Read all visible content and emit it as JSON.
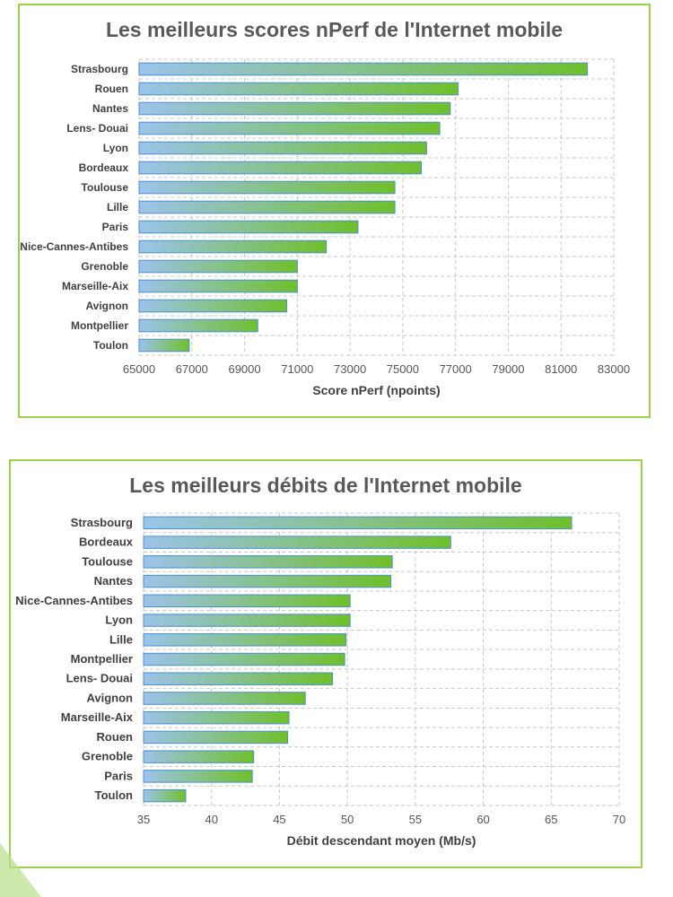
{
  "chart_data": [
    {
      "type": "bar",
      "orientation": "horizontal",
      "title": "Les meilleurs scores nPerf de l'Internet mobile",
      "xlabel": "Score nPerf (npoints)",
      "ylabel": "",
      "categories": [
        "Strasbourg",
        "Rouen",
        "Nantes",
        "Lens- Douai",
        "Lyon",
        "Bordeaux",
        "Toulouse",
        "Lille",
        "Paris",
        "Nice-Cannes-Antibes",
        "Grenoble",
        "Marseille-Aix",
        "Avignon",
        "Montpellier",
        "Toulon"
      ],
      "values": [
        82000,
        77100,
        76800,
        76400,
        75900,
        75700,
        74700,
        74700,
        73300,
        72100,
        71000,
        71000,
        70600,
        69500,
        66900
      ],
      "xlim": [
        65000,
        83000
      ],
      "xticks": [
        "65000",
        "67000",
        "69000",
        "71000",
        "73000",
        "75000",
        "77000",
        "79000",
        "81000",
        "83000"
      ],
      "grid": true,
      "colors": {
        "bar_start": "#9cc3ea",
        "bar_end": "#6fc02a",
        "bar_border": "#4a8fd0",
        "grid": "#c8c8c8"
      }
    },
    {
      "type": "bar",
      "orientation": "horizontal",
      "title": "Les meilleurs débits de l'Internet mobile",
      "xlabel": "Débit descendant moyen (Mb/s)",
      "ylabel": "",
      "categories": [
        "Strasbourg",
        "Bordeaux",
        "Toulouse",
        "Nantes",
        "Nice-Cannes-Antibes",
        "Lyon",
        "Lille",
        "Montpellier",
        "Lens- Douai",
        "Avignon",
        "Marseille-Aix",
        "Rouen",
        "Grenoble",
        "Paris",
        "Toulon"
      ],
      "values": [
        66.5,
        57.6,
        53.3,
        53.2,
        50.2,
        50.2,
        49.9,
        49.8,
        48.9,
        46.9,
        45.7,
        45.6,
        43.1,
        43.0,
        38.1
      ],
      "xlim": [
        35,
        70
      ],
      "xticks": [
        "35",
        "40",
        "45",
        "50",
        "55",
        "60",
        "65",
        "70"
      ],
      "grid": true,
      "colors": {
        "bar_start": "#9cc3ea",
        "bar_end": "#6fc02a",
        "bar_border": "#4a8fd0",
        "grid": "#c8c8c8"
      }
    }
  ]
}
